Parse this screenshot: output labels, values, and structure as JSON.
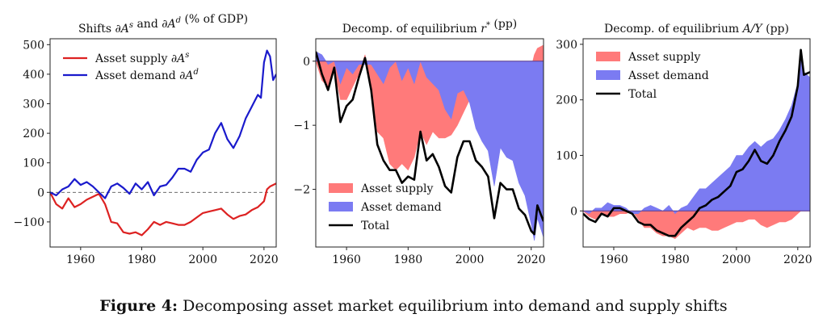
{
  "caption": {
    "label": "Figure 4:",
    "text": "Decomposing asset market equilibrium into demand and supply shifts"
  },
  "colors": {
    "supply_line": "#dd2222",
    "demand_line": "#1a1acc",
    "supply_fill": "#ff7a7a",
    "demand_fill": "#7b7bf2",
    "total_line": "#000000",
    "zero_line": "#555555"
  },
  "chart_data": [
    {
      "type": "line",
      "title": "Shifts ∂As and ∂Ad (% of GDP)",
      "xlim": [
        1950,
        2024
      ],
      "ylim": [
        -185,
        520
      ],
      "xticks": [
        1960,
        1980,
        2000,
        2020
      ],
      "yticks": [
        -100,
        0,
        100,
        200,
        300,
        400,
        500
      ],
      "legend_position": "top-left",
      "zero_line": "dashed",
      "series": [
        {
          "name": "Asset supply ∂As",
          "color": "#dd2222",
          "x": [
            1950,
            1952,
            1954,
            1956,
            1958,
            1960,
            1962,
            1964,
            1966,
            1968,
            1970,
            1972,
            1974,
            1976,
            1978,
            1980,
            1982,
            1984,
            1986,
            1988,
            1990,
            1992,
            1994,
            1996,
            1998,
            2000,
            2002,
            2004,
            2006,
            2008,
            2010,
            2012,
            2014,
            2016,
            2018,
            2020,
            2021,
            2022,
            2024
          ],
          "y": [
            0,
            -40,
            -55,
            -20,
            -50,
            -40,
            -25,
            -15,
            -5,
            -40,
            -100,
            -105,
            -135,
            -140,
            -135,
            -145,
            -125,
            -100,
            -110,
            -100,
            -105,
            -110,
            -110,
            -100,
            -85,
            -70,
            -65,
            -60,
            -55,
            -75,
            -90,
            -80,
            -75,
            -60,
            -50,
            -30,
            10,
            20,
            30
          ]
        },
        {
          "name": "Asset demand ∂Ad",
          "color": "#1a1acc",
          "x": [
            1950,
            1952,
            1954,
            1956,
            1958,
            1960,
            1962,
            1964,
            1966,
            1968,
            1970,
            1972,
            1974,
            1976,
            1978,
            1980,
            1982,
            1984,
            1986,
            1988,
            1990,
            1992,
            1994,
            1996,
            1998,
            2000,
            2002,
            2004,
            2006,
            2008,
            2010,
            2012,
            2014,
            2016,
            2018,
            2019,
            2020,
            2021,
            2022,
            2023,
            2024
          ],
          "y": [
            0,
            -10,
            10,
            20,
            45,
            25,
            35,
            20,
            0,
            -20,
            20,
            30,
            15,
            -5,
            30,
            10,
            35,
            -10,
            20,
            25,
            50,
            80,
            80,
            70,
            110,
            135,
            145,
            200,
            235,
            180,
            150,
            190,
            250,
            290,
            330,
            320,
            440,
            480,
            460,
            380,
            400
          ]
        }
      ]
    },
    {
      "type": "area",
      "title": "Decomp. of equilibrium r* (pp)",
      "xlim": [
        1950,
        2024
      ],
      "ylim": [
        -2.9,
        0.35
      ],
      "xticks": [
        1960,
        1980,
        2000,
        2020
      ],
      "yticks": [
        -2,
        -1,
        0
      ],
      "legend_position": "bottom-left",
      "x": [
        1950,
        1952,
        1954,
        1956,
        1958,
        1960,
        1962,
        1964,
        1966,
        1968,
        1970,
        1972,
        1974,
        1976,
        1978,
        1980,
        1982,
        1984,
        1986,
        1988,
        1990,
        1992,
        1994,
        1996,
        1998,
        2000,
        2002,
        2004,
        2006,
        2008,
        2010,
        2012,
        2014,
        2016,
        2018,
        2020,
        2021,
        2022,
        2024
      ],
      "series": [
        {
          "name": "Asset supply",
          "color": "#ff7a7a",
          "values": [
            0,
            -0.3,
            -0.4,
            -0.1,
            -0.6,
            -0.6,
            -0.4,
            -0.2,
            0.1,
            -0.4,
            -1.1,
            -1.2,
            -1.6,
            -1.7,
            -1.6,
            -1.7,
            -1.5,
            -1.1,
            -1.3,
            -1.1,
            -1.2,
            -1.2,
            -1.15,
            -1.0,
            -0.8,
            -0.6,
            -0.5,
            -0.4,
            -0.4,
            -0.5,
            -0.55,
            -0.5,
            -0.45,
            -0.4,
            -0.3,
            -0.1,
            0.1,
            0.2,
            0.25
          ]
        },
        {
          "name": "Asset demand",
          "color": "#7b7bf2",
          "values": [
            0.15,
            0.1,
            -0.05,
            0.0,
            -0.35,
            -0.1,
            -0.2,
            -0.05,
            -0.05,
            -0.05,
            -0.2,
            -0.35,
            -0.1,
            0.0,
            -0.3,
            -0.1,
            -0.35,
            0.0,
            -0.25,
            -0.35,
            -0.45,
            -0.75,
            -0.9,
            -0.5,
            -0.45,
            -0.65,
            -1.05,
            -1.25,
            -1.4,
            -1.95,
            -1.35,
            -1.5,
            -1.55,
            -1.9,
            -2.1,
            -2.55,
            -2.8,
            -2.45,
            -2.75
          ]
        },
        {
          "name": "Total",
          "color": "#000000",
          "values": [
            0.15,
            -0.2,
            -0.45,
            -0.1,
            -0.95,
            -0.7,
            -0.6,
            -0.25,
            0.05,
            -0.45,
            -1.3,
            -1.55,
            -1.7,
            -1.7,
            -1.9,
            -1.8,
            -1.85,
            -1.1,
            -1.55,
            -1.45,
            -1.65,
            -1.95,
            -2.05,
            -1.5,
            -1.25,
            -1.25,
            -1.55,
            -1.65,
            -1.8,
            -2.45,
            -1.9,
            -2.0,
            -2.0,
            -2.3,
            -2.4,
            -2.65,
            -2.7,
            -2.25,
            -2.5
          ]
        }
      ]
    },
    {
      "type": "area",
      "title": "Decomp. of equilibrium A/Y (pp)",
      "xlim": [
        1950,
        2024
      ],
      "ylim": [
        -65,
        310
      ],
      "xticks": [
        1960,
        1980,
        2000,
        2020
      ],
      "yticks": [
        0,
        100,
        200,
        300
      ],
      "legend_position": "top-left",
      "x": [
        1950,
        1952,
        1954,
        1956,
        1958,
        1960,
        1962,
        1964,
        1966,
        1968,
        1970,
        1972,
        1974,
        1976,
        1978,
        1980,
        1982,
        1984,
        1986,
        1988,
        1990,
        1992,
        1994,
        1996,
        1998,
        2000,
        2002,
        2004,
        2006,
        2008,
        2010,
        2012,
        2014,
        2016,
        2018,
        2020,
        2021,
        2022,
        2024
      ],
      "series": [
        {
          "name": "Asset supply",
          "color": "#ff7a7a",
          "values": [
            0,
            -10,
            -15,
            -5,
            -10,
            -10,
            -5,
            -5,
            0,
            -15,
            -30,
            -30,
            -40,
            -45,
            -45,
            -50,
            -40,
            -30,
            -35,
            -30,
            -30,
            -35,
            -35,
            -30,
            -25,
            -20,
            -20,
            -15,
            -15,
            -25,
            -30,
            -25,
            -20,
            -20,
            -15,
            -5,
            0,
            5,
            10
          ]
        },
        {
          "name": "Asset demand",
          "color": "#7b7bf2",
          "values": [
            0,
            -5,
            5,
            5,
            15,
            10,
            10,
            5,
            -5,
            -5,
            5,
            10,
            5,
            0,
            10,
            -5,
            5,
            10,
            25,
            40,
            40,
            50,
            60,
            70,
            80,
            100,
            100,
            115,
            125,
            115,
            125,
            130,
            145,
            165,
            190,
            230,
            285,
            250,
            240
          ]
        },
        {
          "name": "Total",
          "color": "#000000",
          "values": [
            -5,
            -15,
            -20,
            -5,
            -10,
            5,
            5,
            0,
            -5,
            -20,
            -25,
            -25,
            -35,
            -40,
            -45,
            -45,
            -30,
            -20,
            -10,
            5,
            10,
            20,
            25,
            35,
            45,
            70,
            75,
            90,
            110,
            90,
            85,
            100,
            125,
            145,
            170,
            225,
            290,
            245,
            250
          ]
        }
      ]
    }
  ]
}
